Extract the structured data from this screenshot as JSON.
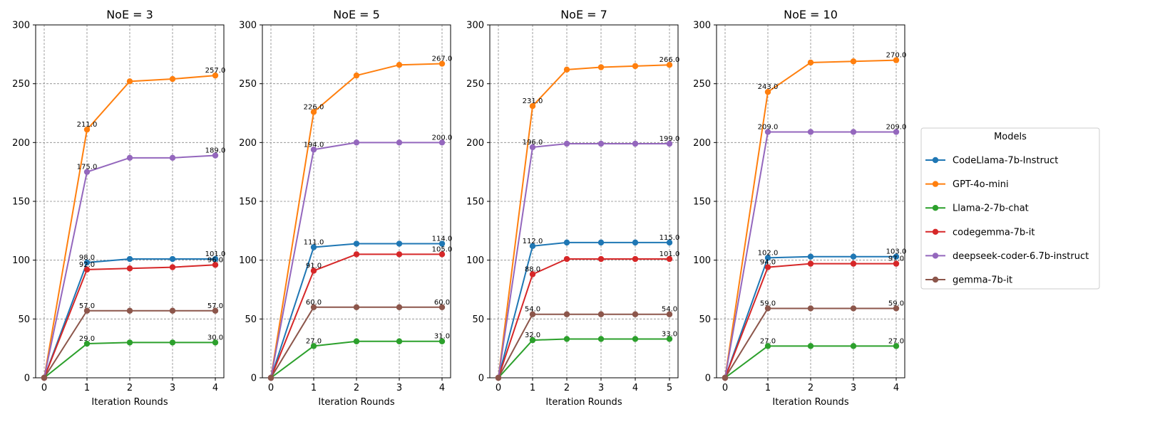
{
  "chart_data": {
    "type": "line",
    "colors": {
      "CodeLlama-7b-Instruct": "#1f77b4",
      "GPT-4o-mini": "#ff7f0e",
      "Llama-2-7b-chat": "#2ca02c",
      "codegemma-7b-it": "#d62728",
      "deepseek-coder-6.7b-instruct": "#9467bd",
      "gemma-7b-it": "#8c564b"
    },
    "legend": {
      "title": "Models",
      "placement": "right",
      "entries": [
        "CodeLlama-7b-Instruct",
        "GPT-4o-mini",
        "Llama-2-7b-chat",
        "codegemma-7b-it",
        "deepseek-coder-6.7b-instruct",
        "gemma-7b-it"
      ]
    },
    "panels": [
      {
        "title": "NoE = 3",
        "xlabel": "Iteration Rounds",
        "ylabel": "",
        "x": [
          0,
          1,
          2,
          3,
          4
        ],
        "xticks": [
          "0",
          "1",
          "2",
          "3",
          "4"
        ],
        "xlim": [
          -0.2,
          4.2
        ],
        "ylim": [
          0,
          300
        ],
        "yticks": [
          "0",
          "50",
          "100",
          "150",
          "200",
          "250",
          "300"
        ],
        "grid": true,
        "series": [
          {
            "name": "CodeLlama-7b-Instruct",
            "values": [
              0,
              98,
              101,
              101,
              101
            ],
            "labels": [
              "98.0",
              "101.0"
            ]
          },
          {
            "name": "GPT-4o-mini",
            "values": [
              0,
              211,
              252,
              254,
              257
            ],
            "labels": [
              "211.0",
              "257.0"
            ]
          },
          {
            "name": "Llama-2-7b-chat",
            "values": [
              0,
              29,
              30,
              30,
              30
            ],
            "labels": [
              "29.0",
              "30.0"
            ]
          },
          {
            "name": "codegemma-7b-it",
            "values": [
              0,
              92,
              93,
              94,
              96
            ],
            "labels": [
              "92.0",
              "96.0"
            ]
          },
          {
            "name": "deepseek-coder-6.7b-instruct",
            "values": [
              0,
              175,
              187,
              187,
              189
            ],
            "labels": [
              "175.0",
              "189.0"
            ]
          },
          {
            "name": "gemma-7b-it",
            "values": [
              0,
              57,
              57,
              57,
              57
            ],
            "labels": [
              "57.0",
              "57.0"
            ]
          }
        ]
      },
      {
        "title": "NoE = 5",
        "xlabel": "Iteration Rounds",
        "ylabel": "",
        "x": [
          0,
          1,
          2,
          3,
          4
        ],
        "xticks": [
          "0",
          "1",
          "2",
          "3",
          "4"
        ],
        "xlim": [
          -0.2,
          4.2
        ],
        "ylim": [
          0,
          300
        ],
        "yticks": [
          "0",
          "50",
          "100",
          "150",
          "200",
          "250",
          "300"
        ],
        "grid": true,
        "series": [
          {
            "name": "CodeLlama-7b-Instruct",
            "values": [
              0,
              111,
              114,
              114,
              114
            ],
            "labels": [
              "111.0",
              "114.0"
            ]
          },
          {
            "name": "GPT-4o-mini",
            "values": [
              0,
              226,
              257,
              266,
              267
            ],
            "labels": [
              "226.0",
              "267.0"
            ]
          },
          {
            "name": "Llama-2-7b-chat",
            "values": [
              0,
              27,
              31,
              31,
              31
            ],
            "labels": [
              "27.0",
              "31.0"
            ]
          },
          {
            "name": "codegemma-7b-it",
            "values": [
              0,
              91,
              105,
              105,
              105
            ],
            "labels": [
              "91.0",
              "105.0"
            ]
          },
          {
            "name": "deepseek-coder-6.7b-instruct",
            "values": [
              0,
              194,
              200,
              200,
              200
            ],
            "labels": [
              "194.0",
              "200.0"
            ]
          },
          {
            "name": "gemma-7b-it",
            "values": [
              0,
              60,
              60,
              60,
              60
            ],
            "labels": [
              "60.0",
              "60.0"
            ]
          }
        ]
      },
      {
        "title": "NoE = 7",
        "xlabel": "Iteration Rounds",
        "ylabel": "",
        "x": [
          0,
          1,
          2,
          3,
          4,
          5
        ],
        "xticks": [
          "0",
          "1",
          "2",
          "3",
          "4",
          "5"
        ],
        "xlim": [
          -0.25,
          5.25
        ],
        "ylim": [
          0,
          300
        ],
        "yticks": [
          "0",
          "50",
          "100",
          "150",
          "200",
          "250",
          "300"
        ],
        "grid": true,
        "series": [
          {
            "name": "CodeLlama-7b-Instruct",
            "values": [
              0,
              112,
              115,
              115,
              115,
              115
            ],
            "labels": [
              "112.0",
              "115.0"
            ]
          },
          {
            "name": "GPT-4o-mini",
            "values": [
              0,
              231,
              262,
              264,
              265,
              266
            ],
            "labels": [
              "231.0",
              "266.0"
            ]
          },
          {
            "name": "Llama-2-7b-chat",
            "values": [
              0,
              32,
              33,
              33,
              33,
              33
            ],
            "labels": [
              "32.0",
              "33.0"
            ]
          },
          {
            "name": "codegemma-7b-it",
            "values": [
              0,
              88,
              101,
              101,
              101,
              101
            ],
            "labels": [
              "88.0",
              "101.0"
            ]
          },
          {
            "name": "deepseek-coder-6.7b-instruct",
            "values": [
              0,
              196,
              199,
              199,
              199,
              199
            ],
            "labels": [
              "196.0",
              "199.0"
            ]
          },
          {
            "name": "gemma-7b-it",
            "values": [
              0,
              54,
              54,
              54,
              54,
              54
            ],
            "labels": [
              "54.0",
              "54.0"
            ]
          }
        ]
      },
      {
        "title": "NoE = 10",
        "xlabel": "Iteration Rounds",
        "ylabel": "",
        "x": [
          0,
          1,
          2,
          3,
          4
        ],
        "xticks": [
          "0",
          "1",
          "2",
          "3",
          "4"
        ],
        "xlim": [
          -0.2,
          4.2
        ],
        "ylim": [
          0,
          300
        ],
        "yticks": [
          "0",
          "50",
          "100",
          "150",
          "200",
          "250",
          "300"
        ],
        "grid": true,
        "series": [
          {
            "name": "CodeLlama-7b-Instruct",
            "values": [
              0,
              102,
              103,
              103,
              103
            ],
            "labels": [
              "102.0",
              "103.0"
            ]
          },
          {
            "name": "GPT-4o-mini",
            "values": [
              0,
              243,
              268,
              269,
              270
            ],
            "labels": [
              "243.0",
              "270.0"
            ]
          },
          {
            "name": "Llama-2-7b-chat",
            "values": [
              0,
              27,
              27,
              27,
              27
            ],
            "labels": [
              "27.0",
              "27.0"
            ]
          },
          {
            "name": "codegemma-7b-it",
            "values": [
              0,
              94,
              97,
              97,
              97
            ],
            "labels": [
              "94.0",
              "97.0"
            ]
          },
          {
            "name": "deepseek-coder-6.7b-instruct",
            "values": [
              0,
              209,
              209,
              209,
              209
            ],
            "labels": [
              "209.0",
              "209.0"
            ]
          },
          {
            "name": "gemma-7b-it",
            "values": [
              0,
              59,
              59,
              59,
              59
            ],
            "labels": [
              "59.0",
              "59.0"
            ]
          }
        ]
      }
    ]
  }
}
